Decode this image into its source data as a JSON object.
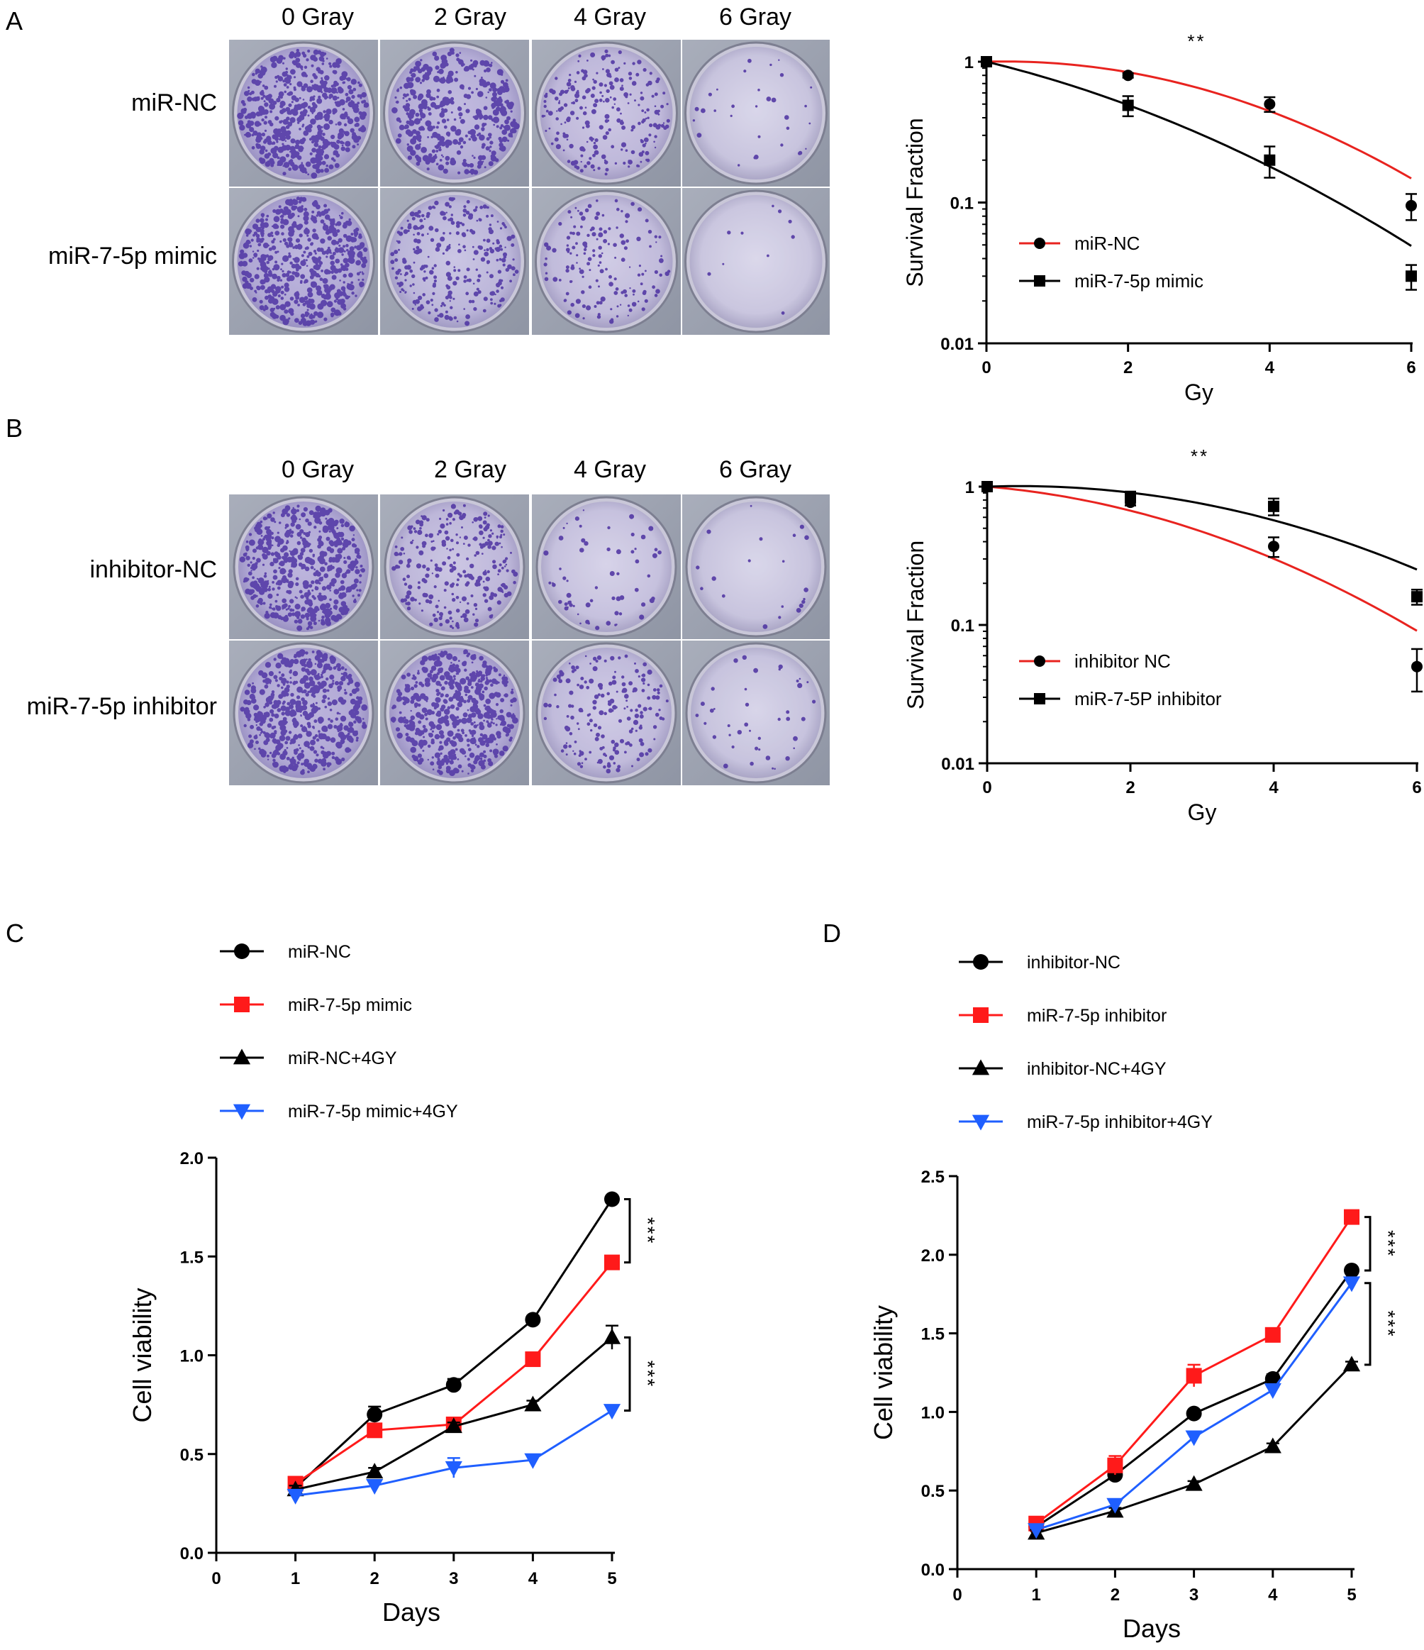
{
  "panels": {
    "A": {
      "letter": "A",
      "dose_labels": [
        "0 Gray",
        "2 Gray",
        "4 Gray",
        "6 Gray"
      ],
      "row_labels": [
        "miR-NC",
        "miR-7-5p mimic"
      ],
      "colony_density": [
        [
          1.0,
          0.8,
          0.45,
          0.06
        ],
        [
          1.0,
          0.55,
          0.3,
          0.02
        ]
      ]
    },
    "B": {
      "letter": "B",
      "dose_labels": [
        "0 Gray",
        "2 Gray",
        "4 Gray",
        "6 Gray"
      ],
      "row_labels": [
        "inhibitor-NC",
        "miR-7-5p inhibitor"
      ],
      "colony_density": [
        [
          1.0,
          0.5,
          0.12,
          0.04
        ],
        [
          1.0,
          0.95,
          0.35,
          0.08
        ]
      ]
    },
    "C": {
      "letter": "C"
    },
    "D": {
      "letter": "D"
    }
  },
  "chart_data": [
    {
      "id": "survival_A",
      "type": "scatter",
      "yscale": "log",
      "title": "",
      "xlabel": "Gy",
      "ylabel": "Survival Fraction",
      "xlim": [
        0,
        6
      ],
      "ylim": [
        0.01,
        1
      ],
      "xticks": [
        0,
        2,
        4,
        6
      ],
      "yticks": [
        0.01,
        0.1,
        1
      ],
      "ytick_labels": [
        "0.01",
        "0.1",
        "1"
      ],
      "annotation": "**",
      "series": [
        {
          "name": "miR-NC",
          "color": "#e8231f",
          "marker": "circle",
          "curve_color": "#e8231f",
          "x": [
            0,
            2,
            4,
            6
          ],
          "y": [
            1.0,
            0.8,
            0.5,
            0.095
          ],
          "err": [
            0.0,
            0.03,
            0.06,
            0.02
          ],
          "fit": {
            "alpha": -0.03,
            "beta": 0.058
          }
        },
        {
          "name": "miR-7-5p mimic",
          "color": "#000000",
          "marker": "square",
          "curve_color": "#000000",
          "x": [
            0,
            2,
            4,
            6
          ],
          "y": [
            1.0,
            0.49,
            0.2,
            0.03
          ],
          "err": [
            0.0,
            0.08,
            0.05,
            0.006
          ],
          "fit": {
            "alpha": 0.28,
            "beta": 0.037
          }
        }
      ]
    },
    {
      "id": "survival_B",
      "type": "scatter",
      "yscale": "log",
      "title": "",
      "xlabel": "Gy",
      "ylabel": "Survival Fraction",
      "xlim": [
        0,
        6
      ],
      "ylim": [
        0.01,
        1
      ],
      "xticks": [
        0,
        2,
        4,
        6
      ],
      "yticks": [
        0.01,
        0.1,
        1
      ],
      "ytick_labels": [
        "0.01",
        "0.1",
        "1"
      ],
      "annotation": "**",
      "series": [
        {
          "name": "inhibitor NC",
          "color": "#e8231f",
          "marker": "circle",
          "curve_color": "#e8231f",
          "x": [
            0,
            2,
            4,
            6
          ],
          "y": [
            1.0,
            0.77,
            0.37,
            0.05
          ],
          "err": [
            0.0,
            0.04,
            0.06,
            0.017
          ],
          "fit": {
            "alpha": 0.1,
            "beta": 0.05
          }
        },
        {
          "name": "miR-7-5P inhibitor",
          "color": "#000000",
          "marker": "square",
          "curve_color": "#000000",
          "x": [
            0,
            2,
            4,
            6
          ],
          "y": [
            1.0,
            0.85,
            0.72,
            0.16
          ],
          "err": [
            0.0,
            0.06,
            0.1,
            0.02
          ],
          "fit": {
            "alpha": -0.04,
            "beta": 0.045
          }
        }
      ]
    },
    {
      "id": "viability_C",
      "type": "line",
      "title": "",
      "xlabel": "Days",
      "ylabel": "Cell viability",
      "xlim": [
        0,
        5
      ],
      "ylim": [
        0,
        2
      ],
      "xticks": [
        0,
        1,
        2,
        3,
        4,
        5
      ],
      "yticks": [
        0,
        0.5,
        1,
        1.5,
        2
      ],
      "ytick_labels": [
        "0.0",
        "0.5",
        "1.0",
        "1.5",
        "2.0"
      ],
      "x": [
        1,
        2,
        3,
        4,
        5
      ],
      "significance": [
        {
          "from": 1.79,
          "to": 1.47,
          "label": "***"
        },
        {
          "from": 1.09,
          "to": 0.72,
          "label": "***"
        }
      ],
      "series": [
        {
          "name": "miR-NC",
          "color": "#000000",
          "marker": "circle",
          "values": [
            0.33,
            0.7,
            0.85,
            1.18,
            1.79
          ],
          "err": [
            0.02,
            0.04,
            0.03,
            0.02,
            0.01
          ]
        },
        {
          "name": "miR-7-5p mimic",
          "color": "#ff1a1a",
          "marker": "square",
          "values": [
            0.35,
            0.62,
            0.65,
            0.98,
            1.47
          ],
          "err": [
            0.02,
            0.03,
            0.03,
            0.02,
            0.02
          ]
        },
        {
          "name": "miR-NC+4GY",
          "color": "#000000",
          "marker": "triangle-up",
          "values": [
            0.32,
            0.41,
            0.64,
            0.75,
            1.09
          ],
          "err": [
            0.02,
            0.02,
            0.02,
            0.02,
            0.06
          ]
        },
        {
          "name": "miR-7-5p mimic+4GY",
          "color": "#1f5fff",
          "marker": "triangle-down",
          "values": [
            0.29,
            0.34,
            0.43,
            0.47,
            0.72
          ],
          "err": [
            0.01,
            0.02,
            0.05,
            0.02,
            0.02
          ]
        }
      ]
    },
    {
      "id": "viability_D",
      "type": "line",
      "title": "",
      "xlabel": "Days",
      "ylabel": "Cell viability",
      "xlim": [
        0,
        5
      ],
      "ylim": [
        0,
        2.5
      ],
      "xticks": [
        0,
        1,
        2,
        3,
        4,
        5
      ],
      "yticks": [
        0,
        0.5,
        1,
        1.5,
        2,
        2.5
      ],
      "ytick_labels": [
        "0.0",
        "0.5",
        "1.0",
        "1.5",
        "2.0",
        "2.5"
      ],
      "x": [
        1,
        2,
        3,
        4,
        5
      ],
      "significance": [
        {
          "from": 2.24,
          "to": 1.9,
          "label": "***"
        },
        {
          "from": 1.82,
          "to": 1.3,
          "label": "***"
        }
      ],
      "series": [
        {
          "name": "inhibitor-NC",
          "color": "#000000",
          "marker": "circle",
          "values": [
            0.27,
            0.6,
            0.99,
            1.21,
            1.9
          ],
          "err": [
            0.02,
            0.03,
            0.02,
            0.03,
            0.02
          ]
        },
        {
          "name": "miR-7-5p inhibitor",
          "color": "#ff1a1a",
          "marker": "square",
          "values": [
            0.29,
            0.66,
            1.23,
            1.49,
            2.24
          ],
          "err": [
            0.02,
            0.06,
            0.07,
            0.03,
            0.03
          ]
        },
        {
          "name": "inhibitor-NC+4GY",
          "color": "#000000",
          "marker": "triangle-up",
          "values": [
            0.23,
            0.37,
            0.54,
            0.78,
            1.3
          ],
          "err": [
            0.02,
            0.02,
            0.02,
            0.02,
            0.02
          ]
        },
        {
          "name": "miR-7-5p inhibitor+4GY",
          "color": "#1f5fff",
          "marker": "triangle-down",
          "values": [
            0.25,
            0.41,
            0.84,
            1.14,
            1.82
          ],
          "err": [
            0.01,
            0.02,
            0.02,
            0.02,
            0.02
          ]
        }
      ]
    }
  ]
}
